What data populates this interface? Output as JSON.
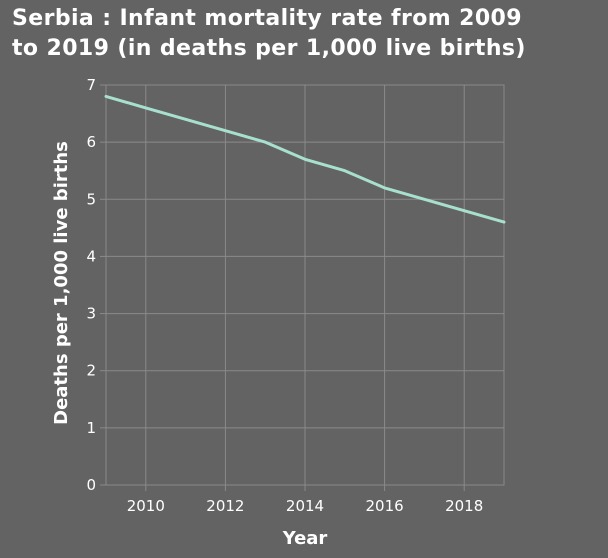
{
  "chart_data": {
    "type": "line",
    "title_lines": [
      "Serbia : Infant mortality rate from 2009",
      "to 2019 (in deaths per 1,000 live births)"
    ],
    "xlabel": "Year",
    "ylabel": "Deaths per 1,000 live births",
    "xlim": [
      2009,
      2019
    ],
    "ylim": [
      0,
      7
    ],
    "xticks": [
      2010,
      2012,
      2014,
      2016,
      2018
    ],
    "yticks": [
      0,
      1,
      2,
      3,
      4,
      5,
      6,
      7
    ],
    "grid": true,
    "legend": "none",
    "series": [
      {
        "color": "#a8e0cf",
        "x": [
          2009,
          2010,
          2011,
          2012,
          2013,
          2014,
          2015,
          2016,
          2017,
          2018,
          2019
        ],
        "y": [
          6.8,
          6.6,
          6.4,
          6.2,
          6.0,
          5.7,
          5.5,
          5.2,
          5.0,
          4.8,
          4.6
        ]
      }
    ],
    "colors": {
      "background": "#636363",
      "grid": "#8a8a8a",
      "text": "#ffffff"
    }
  }
}
